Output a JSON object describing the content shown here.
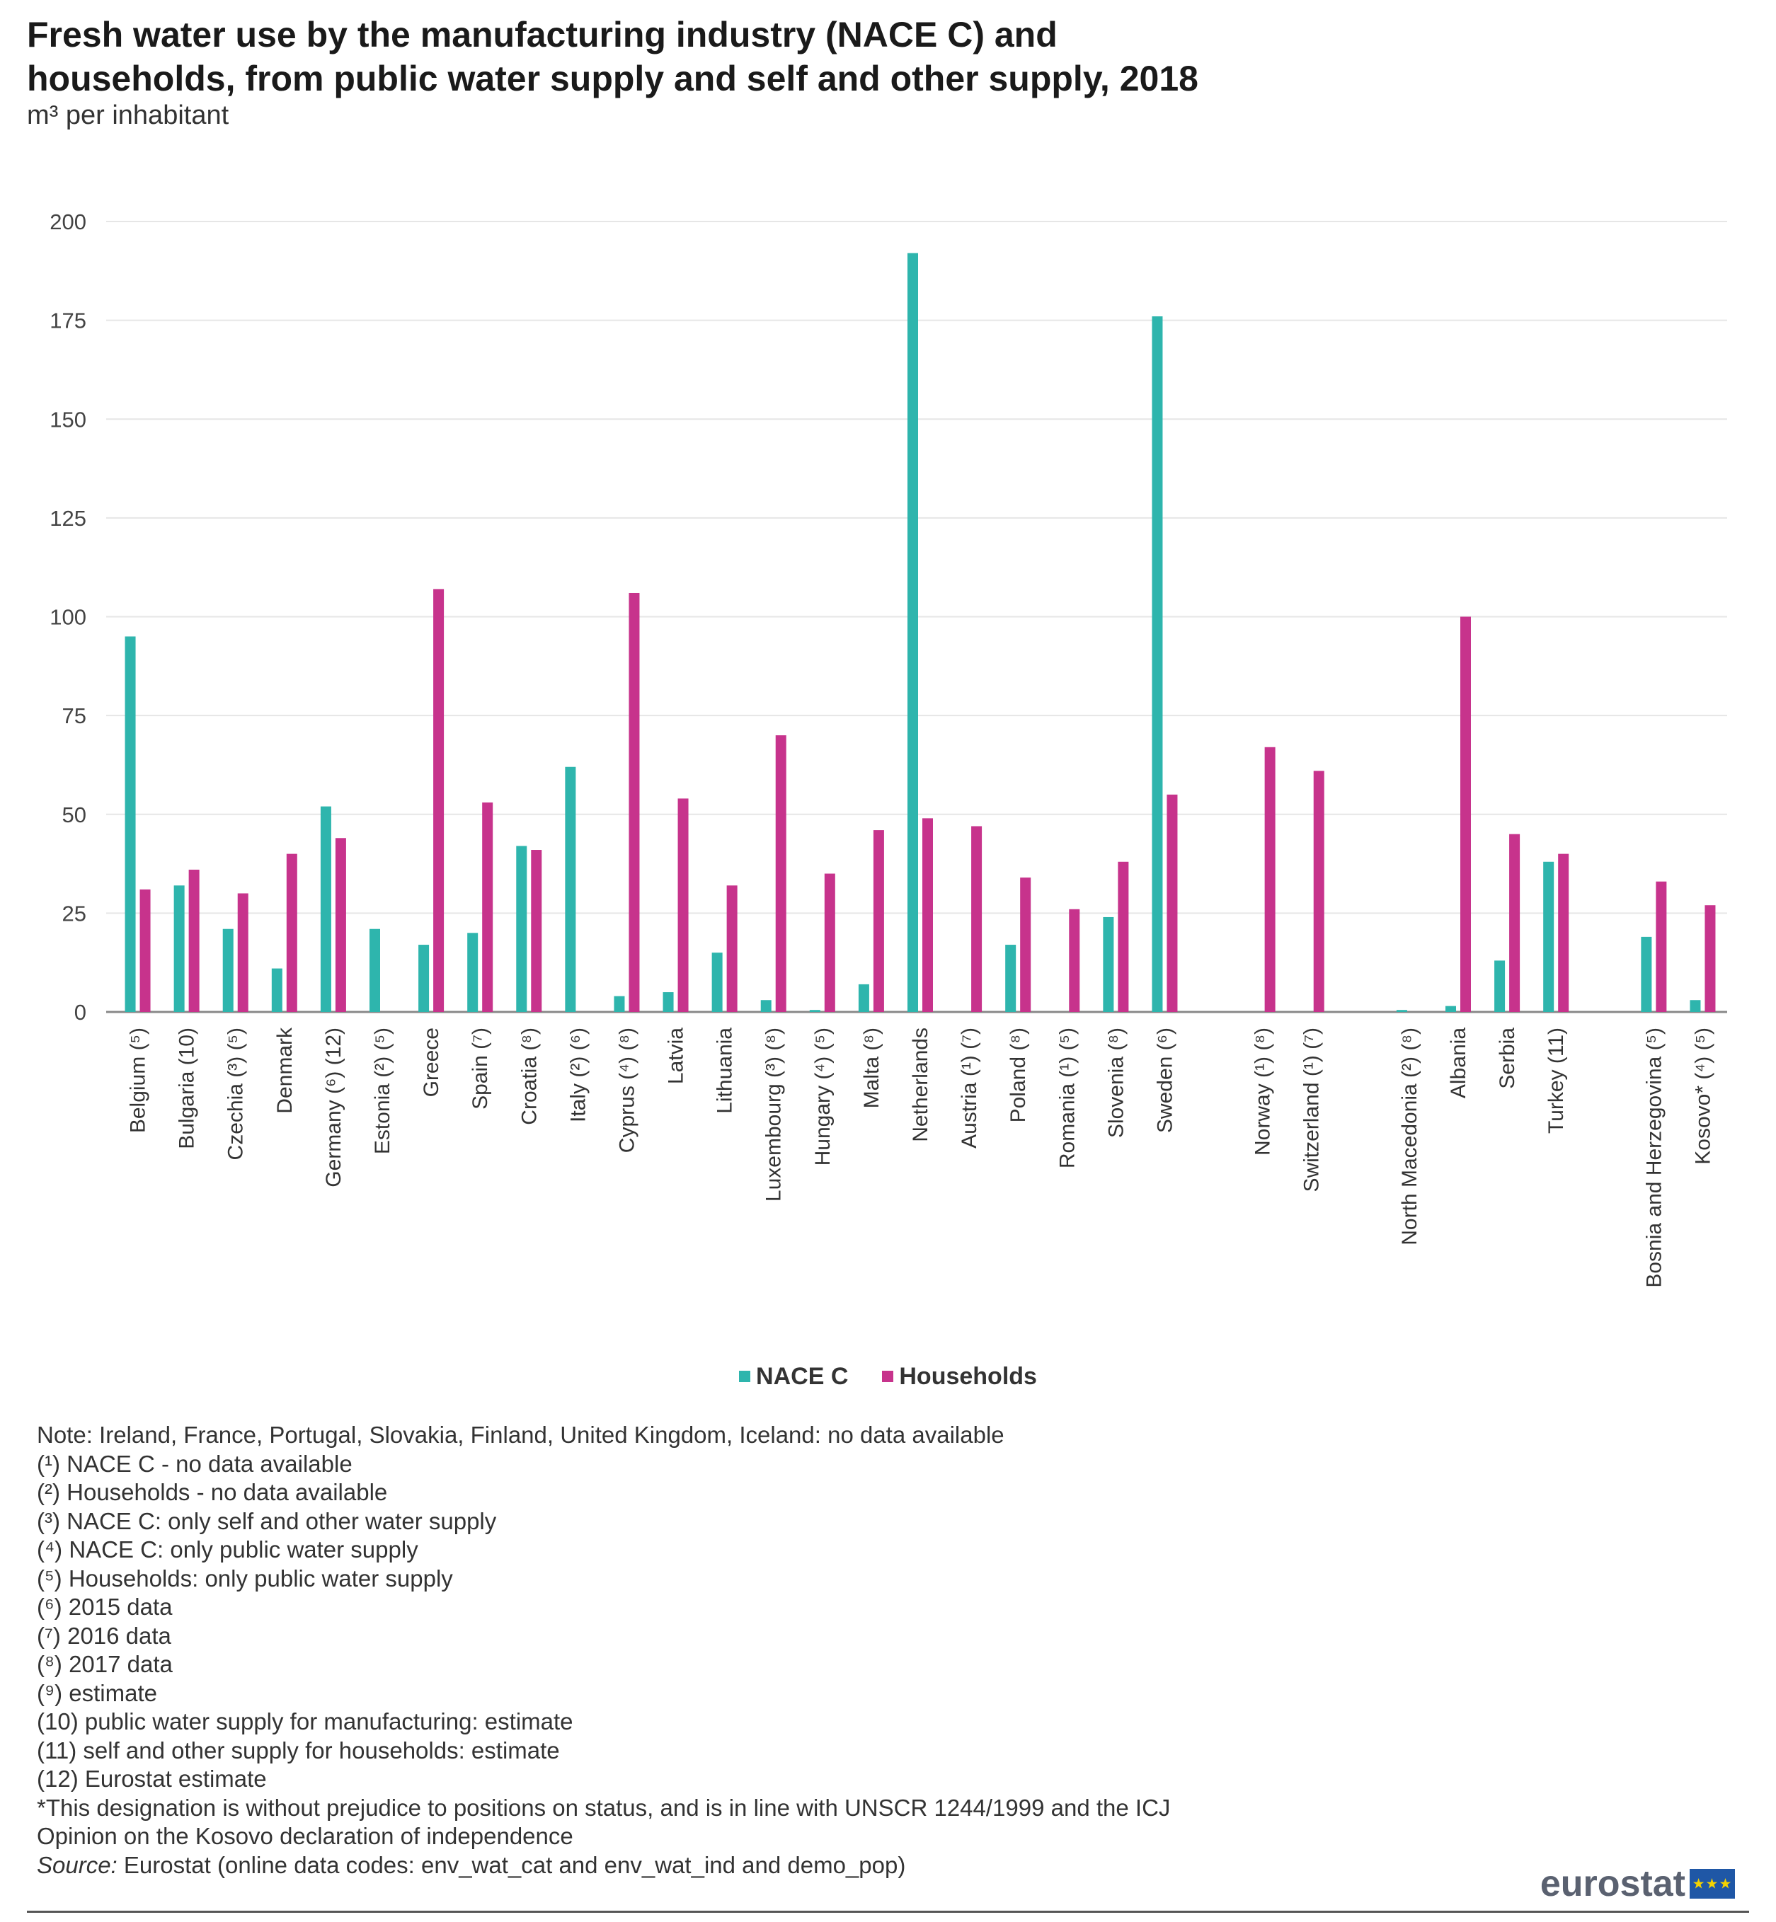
{
  "title_line1": "Fresh water use by the manufacturing industry (NACE C) and",
  "title_line2": "households, from public water supply and self and other supply, 2018",
  "subtitle": "m³ per inhabitant",
  "colors": {
    "nace": "#2eb5ad",
    "households": "#c7338c",
    "grid": "#e6e6e6",
    "axis": "#888888"
  },
  "legend": {
    "nace": "NACE C",
    "households": "Households"
  },
  "chart_data": {
    "type": "bar",
    "title": "Fresh water use by the manufacturing industry (NACE C) and households, from public water supply and self and other supply, 2018",
    "ylabel": "m³ per inhabitant",
    "ylim": [
      0,
      200
    ],
    "yticks": [
      0,
      25,
      50,
      75,
      100,
      125,
      150,
      175,
      200
    ],
    "grid": true,
    "legend_position": "bottom",
    "groups": [
      {
        "label": "Belgium (⁵)",
        "nace": 95,
        "households": 31
      },
      {
        "label": "Bulgaria (10)",
        "nace": 32,
        "households": 36
      },
      {
        "label": "Czechia (³) (⁵)",
        "nace": 21,
        "households": 30
      },
      {
        "label": "Denmark",
        "nace": 11,
        "households": 40
      },
      {
        "label": "Germany (⁶) (12)",
        "nace": 52,
        "households": 44
      },
      {
        "label": "Estonia (²) (⁵)",
        "nace": 21,
        "households": null
      },
      {
        "label": "Greece",
        "nace": 17,
        "households": 107
      },
      {
        "label": "Spain (⁷)",
        "nace": 20,
        "households": 53
      },
      {
        "label": "Croatia (⁸)",
        "nace": 42,
        "households": 41
      },
      {
        "label": "Italy (²) (⁶)",
        "nace": 62,
        "households": null
      },
      {
        "label": "Cyprus (⁴) (⁸)",
        "nace": 4,
        "households": 106
      },
      {
        "label": "Latvia",
        "nace": 5,
        "households": 54
      },
      {
        "label": "Lithuania",
        "nace": 15,
        "households": 32
      },
      {
        "label": "Luxembourg (³) (⁸)",
        "nace": 3,
        "households": 70
      },
      {
        "label": "Hungary (⁴) (⁵)",
        "nace": 0.5,
        "households": 35
      },
      {
        "label": "Malta (⁸)",
        "nace": 7,
        "households": 46
      },
      {
        "label": "Netherlands",
        "nace": 192,
        "households": 49
      },
      {
        "label": "Austria (¹) (⁷)",
        "nace": null,
        "households": 47
      },
      {
        "label": "Poland (⁸)",
        "nace": 17,
        "households": 34
      },
      {
        "label": "Romania (¹) (⁵)",
        "nace": null,
        "households": 26
      },
      {
        "label": "Slovenia (⁸)",
        "nace": 24,
        "households": 38
      },
      {
        "label": "Sweden (⁶)",
        "nace": 176,
        "households": 55
      },
      {
        "label": "",
        "nace": null,
        "households": null
      },
      {
        "label": "Norway (¹) (⁸)",
        "nace": null,
        "households": 67
      },
      {
        "label": "Switzerland (¹) (⁷)",
        "nace": null,
        "households": 61
      },
      {
        "label": "",
        "nace": null,
        "households": null
      },
      {
        "label": "North Macedonia (²) (⁸)",
        "nace": 0.5,
        "households": null
      },
      {
        "label": "Albania",
        "nace": 1.5,
        "households": 100
      },
      {
        "label": "Serbia",
        "nace": 13,
        "households": 45
      },
      {
        "label": "Turkey (11)",
        "nace": 38,
        "households": 40
      },
      {
        "label": "",
        "nace": null,
        "households": null
      },
      {
        "label": "Bosnia and Herzegovina (⁵)",
        "nace": 19,
        "households": 33
      },
      {
        "label": "Kosovo* (⁴) (⁵)",
        "nace": 3,
        "households": 27
      }
    ]
  },
  "notes": [
    "Note: Ireland, France, Portugal, Slovakia, Finland, United Kingdom, Iceland: no data available",
    "(¹) NACE C - no data available",
    "(²) Households - no data available",
    "(³) NACE C: only self and other water supply",
    "(⁴) NACE C: only public water supply",
    "(⁵) Households: only public water supply",
    "(⁶) 2015 data",
    "(⁷) 2016 data",
    "(⁸) 2017 data",
    "(⁹) estimate",
    "(10) public water supply for manufacturing: estimate",
    "(11) self and other supply for households: estimate",
    "(12) Eurostat estimate",
    "*This designation is without prejudice to positions on status, and is in line with UNSCR 1244/1999 and the ICJ",
    "Opinion on the Kosovo declaration of independence"
  ],
  "source_label": "Source:",
  "source_text": "Eurostat (online data codes: env_wat_cat and env_wat_ind and demo_pop)",
  "logo_text": "eurostat",
  "logo_flag_stars": "★★★"
}
